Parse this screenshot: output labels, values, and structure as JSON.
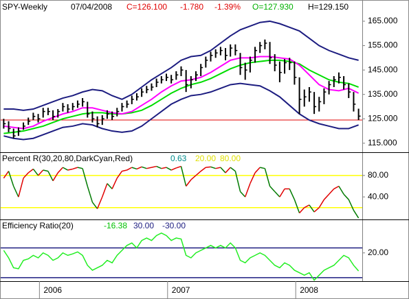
{
  "header": {
    "symbol": "SPY-Weekly",
    "date": "07/04/2008",
    "close": "C=126.100",
    "change": "-1.780",
    "change_pct": "-1.39%",
    "open": "O=127.930",
    "high": "H=129.150",
    "colors": {
      "close": "#e00000",
      "change": "#e00000",
      "change_pct": "#e00000",
      "open": "#00b000",
      "high": "#000000"
    }
  },
  "chart_data": [
    {
      "type": "ohlc",
      "color": "#000000",
      "x": [
        1,
        3,
        5,
        7,
        9,
        11,
        13,
        15,
        17,
        19,
        21,
        23,
        25,
        27,
        29,
        31,
        33,
        35,
        37,
        39,
        41,
        43,
        45,
        47,
        49,
        51,
        53,
        55,
        57,
        59,
        61,
        63,
        65,
        67,
        69,
        71,
        73,
        75,
        77,
        79,
        81,
        83,
        85,
        87,
        89,
        91,
        93,
        95,
        97,
        99,
        101,
        103,
        105,
        107,
        109,
        111,
        113,
        115,
        117,
        119,
        121,
        123,
        125,
        127,
        129,
        131,
        133,
        135,
        137,
        139,
        141,
        143,
        145
      ],
      "high": [
        125,
        124,
        121,
        121.5,
        123.5,
        125.5,
        127.5,
        127,
        129.5,
        129.5,
        128.5,
        129,
        131.5,
        131,
        131.5,
        132.5,
        133.5,
        132,
        128,
        126,
        126.5,
        128.5,
        128,
        129.5,
        131.5,
        132.5,
        134.5,
        135.5,
        137.5,
        138.5,
        139.5,
        141.5,
        142.5,
        143.5,
        143,
        144.5,
        146.5,
        145,
        142.5,
        144.5,
        147.5,
        150.5,
        152.5,
        153.5,
        154.5,
        154,
        155.5,
        155.5,
        152,
        148,
        150.5,
        154.5,
        156.5,
        157.5,
        156.5,
        151.5,
        148.5,
        149.5,
        150,
        148.5,
        142,
        137,
        138,
        136,
        134,
        137.5,
        140.5,
        142.5,
        144,
        142.5,
        139.5,
        136,
        129.15
      ],
      "low": [
        121,
        119.5,
        117,
        118,
        120.5,
        122.5,
        124.5,
        123.5,
        125.5,
        126.5,
        124.5,
        125.5,
        128,
        127.5,
        128.5,
        129.5,
        130,
        125.5,
        123.5,
        121.5,
        122.5,
        125,
        124.5,
        126,
        128,
        129.5,
        131,
        132.5,
        134,
        135.5,
        136.5,
        138,
        139.5,
        140.5,
        139.5,
        141,
        142.5,
        136,
        137.5,
        140.5,
        142.5,
        146,
        148.5,
        150,
        151,
        149,
        150.5,
        151,
        143,
        141,
        144,
        148,
        152,
        153.5,
        147.5,
        144.5,
        140,
        143.5,
        145,
        139,
        127,
        130,
        132,
        127,
        128,
        131,
        135,
        138,
        139.5,
        137,
        133.5,
        128,
        124.5
      ],
      "close": [
        123,
        121,
        118,
        120,
        122,
        124,
        126,
        125,
        128,
        128,
        126,
        128,
        130,
        129,
        130,
        131,
        132,
        127,
        125,
        123,
        125,
        127,
        126,
        128,
        130,
        131,
        133,
        134,
        136,
        137,
        138,
        140,
        141,
        142,
        141,
        143,
        145,
        139,
        141,
        143,
        146,
        149,
        151,
        152,
        153,
        151,
        154,
        153,
        146,
        145,
        149,
        153,
        155,
        156,
        150,
        147,
        144,
        148,
        148,
        142,
        133,
        134,
        136,
        130,
        132,
        136,
        139,
        141,
        142,
        139,
        136,
        131,
        126.1
      ],
      "overlay_x": [
        1,
        5,
        9,
        13,
        17,
        21,
        25,
        29,
        33,
        37,
        41,
        45,
        49,
        53,
        57,
        61,
        65,
        69,
        73,
        77,
        81,
        85,
        89,
        93,
        97,
        101,
        105,
        109,
        113,
        117,
        121,
        125,
        129,
        133,
        137,
        141,
        145
      ],
      "overlays": [
        {
          "color": "#1c1c80",
          "values": [
            129,
            129,
            128.5,
            129,
            130.5,
            132,
            133.5,
            134.5,
            136,
            137,
            136.5,
            134.5,
            133,
            135,
            138,
            141,
            143.5,
            146,
            149,
            150.5,
            151,
            153,
            156,
            159,
            161.5,
            163,
            164.5,
            165,
            164,
            162.5,
            161,
            158,
            155,
            153,
            151.5,
            150,
            149
          ]
        },
        {
          "color": "#1c1c80",
          "values": [
            118,
            117,
            116.5,
            117,
            118.5,
            120,
            121.5,
            122,
            123,
            122.5,
            121,
            120,
            119.5,
            120,
            122,
            125,
            128,
            131,
            133,
            134.5,
            135,
            136,
            137.5,
            139,
            139.5,
            139,
            138.5,
            136.5,
            134,
            130.5,
            127,
            124.5,
            123,
            122,
            121,
            121,
            122.5
          ]
        },
        {
          "color": "#00dd00",
          "values": [
            119,
            119.5,
            120,
            121,
            122,
            123.5,
            125,
            126,
            127,
            127.5,
            127.5,
            127,
            127,
            127.5,
            128.5,
            130.5,
            133,
            135.5,
            137.5,
            139,
            140,
            141.5,
            143.5,
            145.5,
            147,
            148,
            148.5,
            149,
            149,
            148.5,
            147.5,
            145,
            143,
            141,
            140,
            139.5,
            138
          ]
        },
        {
          "color": "#ff00ff",
          "values": [
            122,
            121.5,
            121,
            122,
            124,
            125.5,
            127,
            128,
            129.5,
            129.5,
            128.5,
            127.5,
            127,
            128,
            130.5,
            133,
            136,
            138.5,
            140.5,
            141,
            142,
            144,
            146.5,
            149,
            150,
            150,
            150.5,
            150.5,
            150,
            149.5,
            147,
            143,
            139,
            137,
            136.5,
            137.5,
            135.5
          ]
        }
      ],
      "hline": {
        "value": 124.5,
        "color": "#e00000"
      },
      "xlim": [
        -0.5,
        146.5
      ],
      "xticks": [
        {
          "value": 15.5,
          "label": "2006"
        },
        {
          "value": 67.5,
          "label": "2007"
        },
        {
          "value": 119.5,
          "label": "2008"
        }
      ],
      "ylim": [
        111.3,
        173.7
      ],
      "yticks": [
        {
          "value": 115,
          "label": "115.000"
        },
        {
          "value": 125,
          "label": "125.000"
        },
        {
          "value": 135,
          "label": "135.000"
        },
        {
          "value": 145,
          "label": "145.000"
        },
        {
          "value": 155,
          "label": "155.000"
        },
        {
          "value": 165,
          "label": "165.000"
        }
      ]
    },
    {
      "type": "line",
      "title": "Percent R(30,20,80,DarkCyan,Red)",
      "up_color": "#e00000",
      "down_color": "#007a00",
      "readouts": [
        {
          "label": "0.63",
          "color": "#008b8b"
        },
        {
          "label": "20.00",
          "color": "#e0e000"
        },
        {
          "label": "80.00",
          "color": "#e0e000"
        }
      ],
      "levels": [
        {
          "value": 20,
          "color": "#ffff00"
        },
        {
          "value": 80,
          "color": "#ffff00"
        }
      ],
      "x": [
        1,
        3,
        5,
        7,
        9,
        11,
        13,
        15,
        17,
        19,
        21,
        23,
        25,
        27,
        29,
        31,
        33,
        35,
        37,
        39,
        41,
        43,
        45,
        47,
        49,
        51,
        53,
        55,
        57,
        59,
        61,
        63,
        65,
        67,
        69,
        71,
        73,
        75,
        77,
        79,
        81,
        83,
        85,
        87,
        89,
        91,
        93,
        95,
        97,
        99,
        101,
        103,
        105,
        107,
        109,
        111,
        113,
        115,
        117,
        119,
        121,
        123,
        125,
        127,
        129,
        131,
        133,
        135,
        137,
        139,
        141,
        143,
        145
      ],
      "values": [
        75,
        88,
        60,
        40,
        75,
        85,
        92,
        80,
        90,
        88,
        70,
        85,
        95,
        90,
        92,
        95,
        93,
        60,
        30,
        18,
        40,
        65,
        55,
        75,
        88,
        90,
        95,
        92,
        96,
        93,
        95,
        97,
        93,
        95,
        90,
        94,
        97,
        60,
        72,
        80,
        88,
        95,
        96,
        93,
        95,
        85,
        95,
        88,
        50,
        40,
        65,
        85,
        95,
        93,
        60,
        50,
        40,
        55,
        55,
        35,
        10,
        20,
        25,
        12,
        20,
        35,
        45,
        55,
        60,
        45,
        35,
        15,
        0.63
      ],
      "xlim": [
        -0.5,
        146.5
      ],
      "ylim": [
        -2,
        122
      ],
      "yticks": [
        {
          "value": 40,
          "label": "40.00"
        },
        {
          "value": 80,
          "label": "80.00"
        }
      ]
    },
    {
      "type": "line",
      "title": "Efficiency Ratio(20)",
      "color": "#22ee22",
      "readouts": [
        {
          "label": "-16.38",
          "color": "#00c000"
        },
        {
          "label": "30.00",
          "color": "#1c1c80"
        },
        {
          "label": "-30.00",
          "color": "#1c1c80"
        }
      ],
      "levels": [
        {
          "value": 30,
          "color": "#1c1c80"
        },
        {
          "value": -30,
          "color": "#1c1c80"
        }
      ],
      "x": [
        1,
        3,
        5,
        7,
        9,
        11,
        13,
        15,
        17,
        19,
        21,
        23,
        25,
        27,
        29,
        31,
        33,
        35,
        37,
        39,
        41,
        43,
        45,
        47,
        49,
        51,
        53,
        55,
        57,
        59,
        61,
        63,
        65,
        67,
        69,
        71,
        73,
        75,
        77,
        79,
        81,
        83,
        85,
        87,
        89,
        91,
        93,
        95,
        97,
        99,
        101,
        103,
        105,
        107,
        109,
        111,
        113,
        115,
        117,
        119,
        121,
        123,
        125,
        127,
        129,
        131,
        133,
        135,
        137,
        139,
        141,
        143,
        145
      ],
      "values": [
        25,
        10,
        -10,
        -12,
        5,
        8,
        15,
        10,
        20,
        15,
        5,
        10,
        20,
        15,
        18,
        22,
        15,
        -5,
        -15,
        -10,
        -5,
        5,
        0,
        15,
        25,
        35,
        40,
        30,
        45,
        50,
        45,
        55,
        60,
        55,
        45,
        50,
        48,
        15,
        10,
        20,
        25,
        30,
        35,
        30,
        35,
        30,
        40,
        30,
        5,
        0,
        10,
        15,
        20,
        15,
        5,
        -5,
        -10,
        0,
        -5,
        -15,
        -20,
        -25,
        -20,
        -35,
        -25,
        -15,
        -10,
        -5,
        5,
        15,
        10,
        -5,
        -16.38
      ],
      "xlim": [
        -0.5,
        146.5
      ],
      "ylim": [
        -37,
        86
      ],
      "yticks": [
        {
          "value": 20,
          "label": "20.00"
        }
      ]
    }
  ]
}
